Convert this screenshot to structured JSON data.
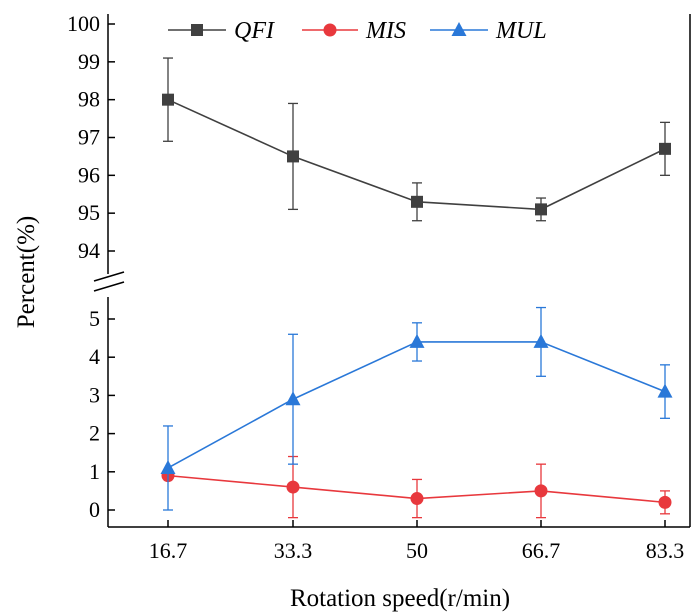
{
  "chart_data": {
    "type": "line",
    "xlabel": "Rotation speed(r/min)",
    "ylabel": "Percent(%)",
    "categories": [
      "16.7",
      "33.3",
      "50",
      "66.7",
      "83.3"
    ],
    "y_axis_broken": true,
    "upper_ylim": [
      94,
      100
    ],
    "upper_yticks": [
      "94",
      "95",
      "96",
      "97",
      "98",
      "99",
      "100"
    ],
    "lower_ylim": [
      0,
      5
    ],
    "lower_yticks": [
      "0",
      "1",
      "2",
      "3",
      "4",
      "5"
    ],
    "legend_position": "top",
    "series": [
      {
        "name": "QFI",
        "color": "#404040",
        "marker": "square",
        "segment": "upper",
        "values": [
          98.0,
          96.5,
          95.3,
          95.1,
          96.7
        ],
        "errors": [
          1.1,
          1.4,
          0.5,
          0.3,
          0.7
        ]
      },
      {
        "name": "MIS",
        "color": "#e8383d",
        "marker": "circle",
        "segment": "lower",
        "values": [
          0.9,
          0.6,
          0.3,
          0.5,
          0.2
        ],
        "errors": [
          0.0,
          0.8,
          0.5,
          0.7,
          0.3
        ]
      },
      {
        "name": "MUL",
        "color": "#2a78d8",
        "marker": "triangle",
        "segment": "lower",
        "values": [
          1.1,
          2.9,
          4.4,
          4.4,
          3.1
        ],
        "errors": [
          1.1,
          1.7,
          0.5,
          0.9,
          0.7
        ]
      }
    ]
  }
}
